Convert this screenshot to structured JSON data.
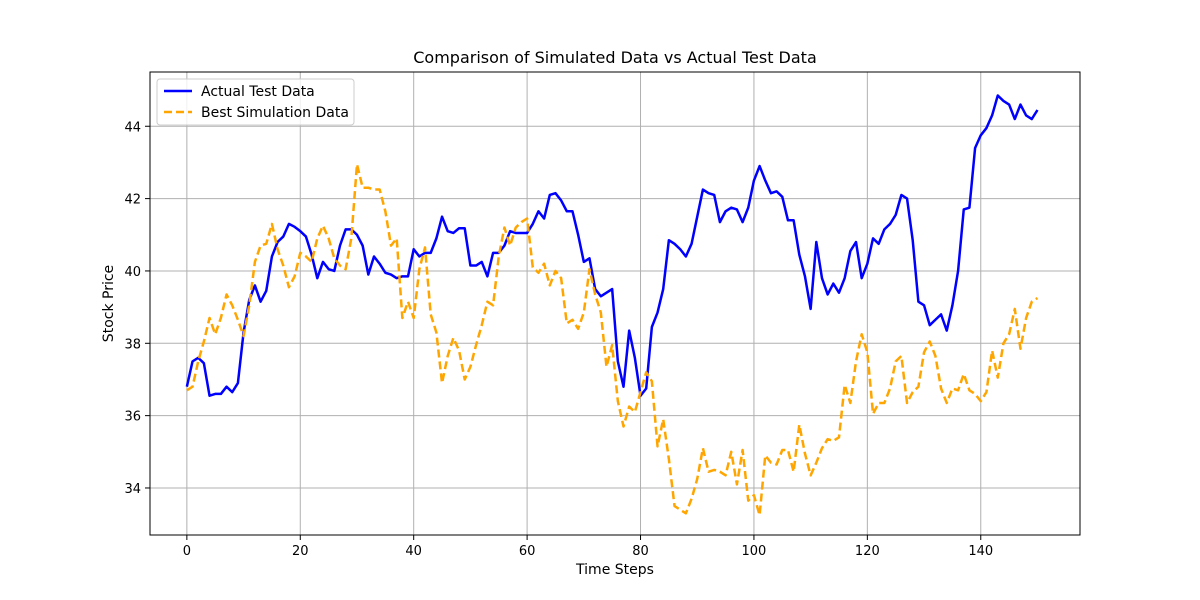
{
  "chart_data": {
    "type": "line",
    "title": "Comparison of Simulated Data vs Actual Test Data",
    "xlabel": "Time Steps",
    "ylabel": "Stock Price",
    "xlim": [
      -6.5,
      157.5
    ],
    "ylim": [
      32.7,
      45.5
    ],
    "xticks": [
      0,
      20,
      40,
      60,
      80,
      100,
      120,
      140
    ],
    "yticks": [
      34,
      36,
      38,
      40,
      42,
      44
    ],
    "grid": true,
    "legend_position": "top-left",
    "series": [
      {
        "name": "Actual Test Data",
        "color": "#0000ff",
        "style": "solid",
        "x": [
          0,
          1,
          2,
          3,
          4,
          5,
          6,
          7,
          8,
          9,
          10,
          11,
          12,
          13,
          14,
          15,
          16,
          17,
          18,
          19,
          20,
          21,
          22,
          23,
          24,
          25,
          26,
          27,
          28,
          29,
          30,
          31,
          32,
          33,
          34,
          35,
          36,
          37,
          38,
          39,
          40,
          41,
          42,
          43,
          44,
          45,
          46,
          47,
          48,
          49,
          50,
          51,
          52,
          53,
          54,
          55,
          56,
          57,
          58,
          59,
          60,
          61,
          62,
          63,
          64,
          65,
          66,
          67,
          68,
          69,
          70,
          71,
          72,
          73,
          74,
          75,
          76,
          77,
          78,
          79,
          80,
          81,
          82,
          83,
          84,
          85,
          86,
          87,
          88,
          89,
          90,
          91,
          92,
          93,
          94,
          95,
          96,
          97,
          98,
          99,
          100,
          101,
          102,
          103,
          104,
          105,
          106,
          107,
          108,
          109,
          110,
          111,
          112,
          113,
          114,
          115,
          116,
          117,
          118,
          119,
          120,
          121,
          122,
          123,
          124,
          125,
          126,
          127,
          128,
          129,
          130,
          131,
          132,
          133,
          134,
          135,
          136,
          137,
          138,
          139,
          140,
          141,
          142,
          143,
          144,
          145,
          146,
          147,
          148,
          149,
          150
        ],
        "y": [
          36.8,
          37.5,
          37.6,
          37.45,
          36.55,
          36.6,
          36.6,
          36.8,
          36.65,
          36.9,
          38.3,
          39.2,
          39.6,
          39.15,
          39.45,
          40.4,
          40.8,
          40.95,
          41.3,
          41.22,
          41.1,
          40.95,
          40.45,
          39.8,
          40.25,
          40.05,
          40.0,
          40.7,
          41.15,
          41.15,
          41.0,
          40.7,
          39.9,
          40.4,
          40.2,
          39.95,
          39.9,
          39.8,
          39.85,
          39.85,
          40.6,
          40.4,
          40.5,
          40.5,
          40.9,
          41.5,
          41.1,
          41.05,
          41.18,
          41.18,
          40.15,
          40.15,
          40.25,
          39.85,
          40.5,
          40.5,
          40.7,
          41.1,
          41.05,
          41.05,
          41.05,
          41.3,
          41.65,
          41.45,
          42.1,
          42.15,
          41.95,
          41.65,
          41.65,
          41.0,
          40.25,
          40.35,
          39.5,
          39.3,
          39.4,
          39.5,
          37.5,
          36.8,
          38.35,
          37.6,
          36.55,
          36.75,
          38.45,
          38.85,
          39.5,
          40.85,
          40.75,
          40.6,
          40.4,
          40.75,
          41.5,
          42.25,
          42.15,
          42.1,
          41.35,
          41.65,
          41.75,
          41.7,
          41.35,
          41.75,
          42.5,
          42.9,
          42.5,
          42.15,
          42.2,
          42.05,
          41.4,
          41.4,
          40.45,
          39.85,
          38.95,
          40.8,
          39.8,
          39.35,
          39.65,
          39.4,
          39.8,
          40.55,
          40.8,
          39.8,
          40.2,
          40.9,
          40.75,
          41.15,
          41.3,
          41.55,
          42.1,
          42.0,
          40.85,
          39.15,
          39.05,
          38.5,
          38.65,
          38.8,
          38.35,
          39.05,
          40.0,
          41.7,
          41.75,
          43.4,
          43.75,
          43.95,
          44.3,
          44.85,
          44.7,
          44.6,
          44.2,
          44.6,
          44.3,
          44.2,
          44.45
        ]
      },
      {
        "name": "Best Simulation Data",
        "color": "#ffa500",
        "style": "dashed",
        "x": [
          0,
          1,
          2,
          3,
          4,
          5,
          6,
          7,
          8,
          9,
          10,
          11,
          12,
          13,
          14,
          15,
          16,
          17,
          18,
          19,
          20,
          21,
          22,
          23,
          24,
          25,
          26,
          27,
          28,
          29,
          30,
          31,
          32,
          33,
          34,
          35,
          36,
          37,
          38,
          39,
          40,
          41,
          42,
          43,
          44,
          45,
          46,
          47,
          48,
          49,
          50,
          51,
          52,
          53,
          54,
          55,
          56,
          57,
          58,
          59,
          60,
          61,
          62,
          63,
          64,
          65,
          66,
          67,
          68,
          69,
          70,
          71,
          72,
          73,
          74,
          75,
          76,
          77,
          78,
          79,
          80,
          81,
          82,
          83,
          84,
          85,
          86,
          87,
          88,
          89,
          90,
          91,
          92,
          93,
          94,
          95,
          96,
          97,
          98,
          99,
          100,
          101,
          102,
          103,
          104,
          105,
          106,
          107,
          108,
          109,
          110,
          111,
          112,
          113,
          114,
          115,
          116,
          117,
          118,
          119,
          120,
          121,
          122,
          123,
          124,
          125,
          126,
          127,
          128,
          129,
          130,
          131,
          132,
          133,
          134,
          135,
          136,
          137,
          138,
          139,
          140,
          141,
          142,
          143,
          144,
          145,
          146,
          147,
          148,
          149,
          150
        ],
        "y": [
          36.7,
          36.8,
          37.5,
          38.05,
          38.7,
          38.25,
          38.7,
          39.35,
          39.05,
          38.65,
          38.2,
          39.05,
          40.25,
          40.7,
          40.75,
          41.3,
          40.6,
          40.15,
          39.55,
          39.85,
          40.5,
          40.4,
          40.25,
          40.9,
          41.25,
          40.9,
          40.35,
          40.15,
          40.05,
          40.9,
          42.95,
          42.3,
          42.3,
          42.25,
          42.25,
          41.65,
          40.7,
          40.9,
          38.7,
          39.15,
          38.7,
          40.05,
          40.65,
          38.8,
          38.3,
          36.9,
          37.65,
          38.15,
          37.8,
          37.0,
          37.35,
          37.95,
          38.5,
          39.15,
          39.05,
          40.4,
          41.2,
          40.7,
          41.2,
          41.35,
          41.45,
          40.1,
          39.95,
          40.2,
          39.6,
          40.0,
          39.8,
          38.55,
          38.65,
          38.4,
          38.85,
          40.05,
          39.35,
          38.85,
          37.35,
          37.95,
          36.4,
          35.7,
          36.25,
          36.1,
          36.65,
          37.2,
          36.95,
          35.15,
          35.9,
          34.8,
          33.5,
          33.4,
          33.3,
          33.7,
          34.25,
          35.1,
          34.45,
          34.5,
          34.45,
          34.35,
          35.0,
          34.1,
          35.05,
          33.65,
          33.8,
          33.25,
          34.9,
          34.7,
          34.65,
          35.05,
          35.05,
          34.45,
          35.75,
          34.95,
          34.35,
          34.7,
          35.1,
          35.35,
          35.3,
          35.4,
          36.85,
          36.35,
          37.5,
          38.25,
          37.75,
          36.05,
          36.35,
          36.35,
          36.75,
          37.5,
          37.65,
          36.35,
          36.65,
          36.8,
          37.75,
          38.05,
          37.65,
          36.75,
          36.35,
          36.75,
          36.7,
          37.15,
          36.7,
          36.6,
          36.4,
          36.65,
          37.8,
          37.05,
          38.0,
          38.25,
          38.95,
          37.85,
          38.7,
          39.15,
          39.25
        ]
      }
    ]
  }
}
